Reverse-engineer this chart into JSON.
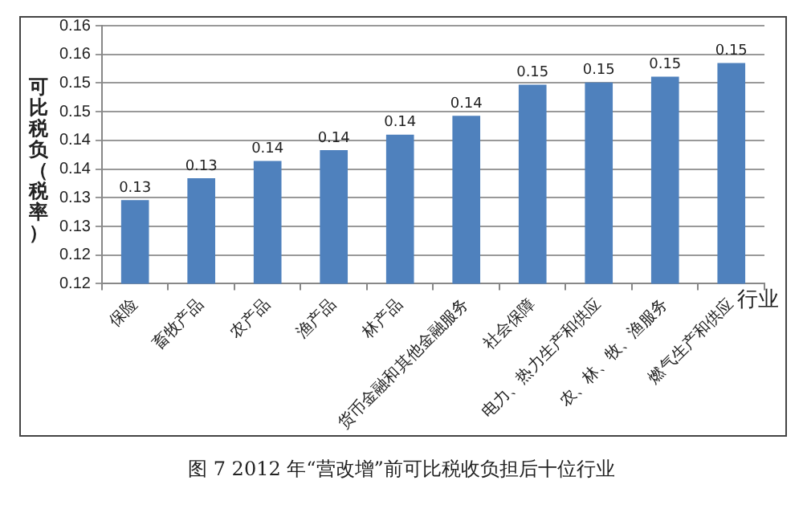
{
  "chart_data": {
    "type": "bar",
    "ylabel": "可比税负（税率）",
    "xlabel": "行业",
    "categories": [
      "保险",
      "畜牧产品",
      "农产品",
      "渔产品",
      "林产品",
      "货币金融和其他金融服务",
      "社会保障",
      "电力、热力生产和供应",
      "农、林、牧、渔服务",
      "燃气生产和供应"
    ],
    "values": [
      0.1296,
      0.1334,
      0.1364,
      0.1383,
      0.141,
      0.1443,
      0.1497,
      0.1501,
      0.1511,
      0.1535
    ],
    "value_labels": [
      "0.13",
      "0.13",
      "0.14",
      "0.14",
      "0.14",
      "0.14",
      "0.15",
      "0.15",
      "0.15",
      "0.15"
    ],
    "color": "#4f81bd",
    "ylim": [
      0.115,
      0.16
    ],
    "yticks": [
      {
        "value": 0.115,
        "label": "0.12"
      },
      {
        "value": 0.12,
        "label": "0.12"
      },
      {
        "value": 0.125,
        "label": "0.13"
      },
      {
        "value": 0.13,
        "label": "0.13"
      },
      {
        "value": 0.135,
        "label": "0.14"
      },
      {
        "value": 0.14,
        "label": "0.14"
      },
      {
        "value": 0.145,
        "label": "0.15"
      },
      {
        "value": 0.15,
        "label": "0.15"
      },
      {
        "value": 0.155,
        "label": "0.16"
      },
      {
        "value": 0.16,
        "label": "0.16"
      }
    ],
    "grid": "y",
    "legend": false,
    "annotations": [
      "图 7  2012 年“营改增”前可比税收负担后十位行业"
    ]
  }
}
